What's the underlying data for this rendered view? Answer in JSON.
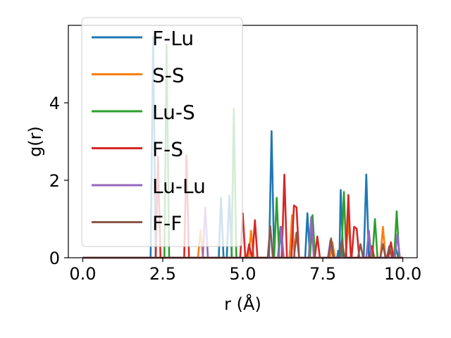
{
  "chart_data": {
    "type": "line",
    "xlabel": "r (Å)",
    "ylabel": "g(r)",
    "xlim": [
      -0.45,
      10.45
    ],
    "ylim": [
      0,
      6.0
    ],
    "xticks": [
      "0.0",
      "2.5",
      "5.0",
      "7.5",
      "10.0"
    ],
    "xtick_values": [
      0,
      2.5,
      5.0,
      7.5,
      10.0
    ],
    "yticks": [
      "0",
      "2",
      "4"
    ],
    "ytick_values": [
      0,
      2,
      4
    ],
    "legend_position": "upper-left",
    "series": [
      {
        "name": "F-Lu",
        "color": "#1f77b4",
        "points": [
          [
            0,
            0
          ],
          [
            2.12,
            0
          ],
          [
            2.2,
            5.7
          ],
          [
            2.28,
            0
          ],
          [
            4.25,
            0
          ],
          [
            4.32,
            1.55
          ],
          [
            4.4,
            0
          ],
          [
            4.5,
            0
          ],
          [
            4.58,
            1.6
          ],
          [
            4.66,
            0
          ],
          [
            5.82,
            0
          ],
          [
            5.9,
            3.27
          ],
          [
            5.98,
            0
          ],
          [
            6.1,
            0
          ],
          [
            6.18,
            0.8
          ],
          [
            6.26,
            0
          ],
          [
            6.95,
            0
          ],
          [
            7.02,
            1.15
          ],
          [
            7.1,
            0
          ],
          [
            7.95,
            0
          ],
          [
            7.98,
            0.18
          ],
          [
            8.02,
            0
          ],
          [
            8.06,
            1.75
          ],
          [
            8.14,
            0
          ],
          [
            8.78,
            0
          ],
          [
            8.86,
            2.15
          ],
          [
            8.94,
            0
          ],
          [
            9.7,
            0
          ],
          [
            9.78,
            0.25
          ],
          [
            9.86,
            0
          ],
          [
            10.0,
            0
          ]
        ]
      },
      {
        "name": "S-S",
        "color": "#ff7f0e",
        "points": [
          [
            0,
            0
          ],
          [
            3.6,
            0
          ],
          [
            3.68,
            0.7
          ],
          [
            3.76,
            0
          ],
          [
            5.18,
            0
          ],
          [
            5.26,
            0.7
          ],
          [
            5.34,
            0
          ],
          [
            6.46,
            0
          ],
          [
            6.54,
            1.1
          ],
          [
            6.62,
            0
          ],
          [
            7.72,
            0
          ],
          [
            7.8,
            0.4
          ],
          [
            7.88,
            0
          ],
          [
            8.22,
            0
          ],
          [
            8.3,
            1.0
          ],
          [
            8.38,
            0
          ],
          [
            9.3,
            0
          ],
          [
            9.38,
            0.8
          ],
          [
            9.46,
            0
          ],
          [
            10.0,
            0
          ]
        ]
      },
      {
        "name": "Lu-S",
        "color": "#2ca02c",
        "points": [
          [
            0,
            0
          ],
          [
            2.55,
            0
          ],
          [
            2.62,
            5.5
          ],
          [
            2.7,
            0
          ],
          [
            4.65,
            0
          ],
          [
            4.72,
            3.85
          ],
          [
            4.8,
            0
          ],
          [
            5.98,
            0
          ],
          [
            6.06,
            1.55
          ],
          [
            6.14,
            0
          ],
          [
            7.1,
            0
          ],
          [
            7.18,
            1.1
          ],
          [
            7.26,
            0
          ],
          [
            8.08,
            0
          ],
          [
            8.16,
            1.7
          ],
          [
            8.24,
            0
          ],
          [
            9.05,
            0
          ],
          [
            9.13,
            1.0
          ],
          [
            9.21,
            0
          ],
          [
            9.73,
            0
          ],
          [
            9.81,
            1.2
          ],
          [
            9.89,
            0
          ],
          [
            10.0,
            0
          ]
        ]
      },
      {
        "name": "F-S",
        "color": "#d62728",
        "points": [
          [
            0,
            0
          ],
          [
            2.28,
            0
          ],
          [
            2.35,
            2.62
          ],
          [
            2.43,
            0
          ],
          [
            3.17,
            0
          ],
          [
            3.24,
            2.65
          ],
          [
            3.32,
            0
          ],
          [
            4.92,
            0
          ],
          [
            5.0,
            1.15
          ],
          [
            5.08,
            0
          ],
          [
            5.12,
            0
          ],
          [
            5.2,
            0.35
          ],
          [
            5.28,
            0
          ],
          [
            5.3,
            0
          ],
          [
            5.38,
            0.97
          ],
          [
            5.46,
            0
          ],
          [
            6.22,
            0
          ],
          [
            6.3,
            2.15
          ],
          [
            6.38,
            0
          ],
          [
            6.52,
            0
          ],
          [
            6.6,
            1.35
          ],
          [
            6.68,
            1.3
          ],
          [
            6.76,
            0
          ],
          [
            7.25,
            0
          ],
          [
            7.33,
            0.55
          ],
          [
            7.41,
            0
          ],
          [
            8.22,
            0
          ],
          [
            8.3,
            1.62
          ],
          [
            8.38,
            0
          ],
          [
            8.4,
            0
          ],
          [
            8.48,
            0.8
          ],
          [
            8.56,
            0.75
          ],
          [
            8.64,
            0
          ],
          [
            8.95,
            0
          ],
          [
            9.03,
            0.3
          ],
          [
            9.11,
            0
          ],
          [
            9.55,
            0
          ],
          [
            9.63,
            0.4
          ],
          [
            9.71,
            0
          ],
          [
            10.0,
            0
          ]
        ]
      },
      {
        "name": "Lu-Lu",
        "color": "#9467bd",
        "points": [
          [
            0,
            0
          ],
          [
            3.75,
            0
          ],
          [
            3.83,
            1.3
          ],
          [
            3.91,
            0
          ],
          [
            6.12,
            0
          ],
          [
            6.2,
            0.8
          ],
          [
            6.28,
            0
          ],
          [
            7.06,
            0
          ],
          [
            7.14,
            1.05
          ],
          [
            7.22,
            0
          ],
          [
            7.66,
            0
          ],
          [
            7.74,
            0.45
          ],
          [
            7.82,
            0
          ],
          [
            8.86,
            0
          ],
          [
            8.94,
            0.7
          ],
          [
            9.02,
            0
          ],
          [
            9.75,
            0
          ],
          [
            9.83,
            0.6
          ],
          [
            9.91,
            0
          ],
          [
            10.0,
            0
          ]
        ]
      },
      {
        "name": "F-F",
        "color": "#8c564b",
        "points": [
          [
            0,
            0
          ],
          [
            5.78,
            0
          ],
          [
            5.86,
            0.82
          ],
          [
            5.94,
            0
          ],
          [
            6.6,
            0
          ],
          [
            6.68,
            0.65
          ],
          [
            6.76,
            0
          ],
          [
            7.68,
            0
          ],
          [
            7.76,
            0.5
          ],
          [
            7.84,
            0
          ],
          [
            8.02,
            0
          ],
          [
            8.1,
            0.45
          ],
          [
            8.18,
            0
          ],
          [
            8.6,
            0
          ],
          [
            8.68,
            0.35
          ],
          [
            8.76,
            0
          ],
          [
            9.3,
            0
          ],
          [
            9.38,
            0.35
          ],
          [
            9.46,
            0
          ],
          [
            9.5,
            0
          ],
          [
            9.58,
            0.3
          ],
          [
            9.66,
            0
          ],
          [
            10.0,
            0
          ]
        ]
      }
    ]
  }
}
